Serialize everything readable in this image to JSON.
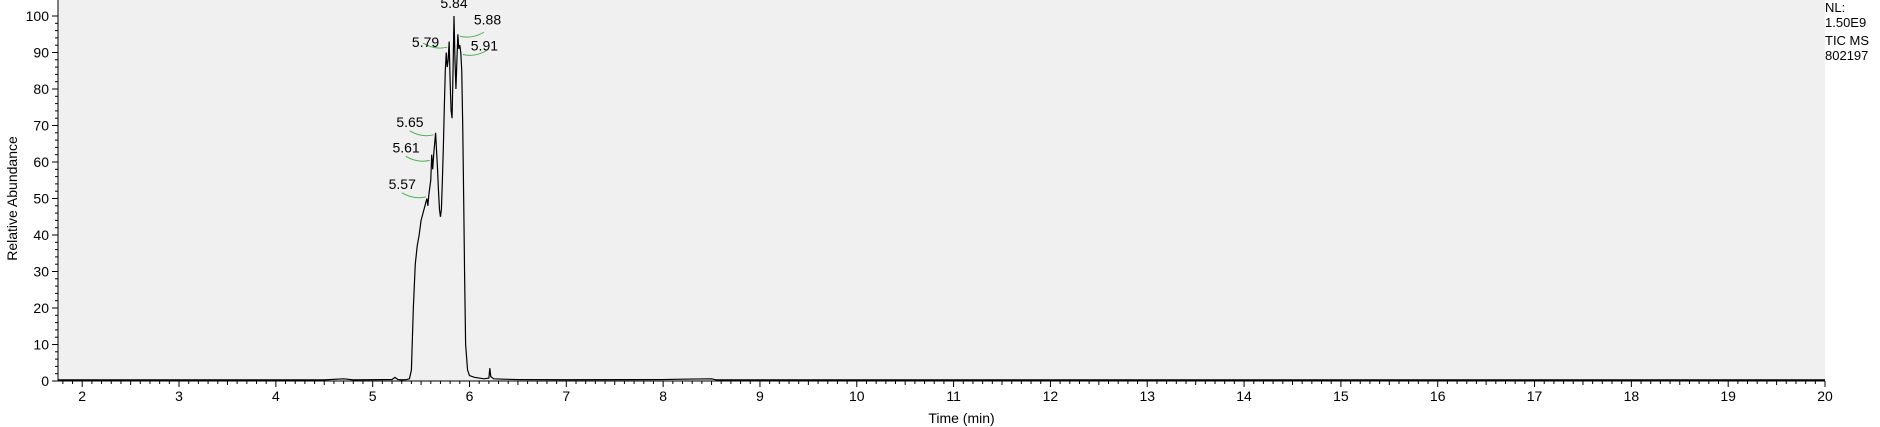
{
  "chart_data": {
    "type": "line",
    "title": "",
    "xlabel": "Time (min)",
    "ylabel": "Relative Abundance",
    "xlim": [
      1.75,
      20
    ],
    "ylim": [
      0,
      100
    ],
    "x_ticks": [
      2,
      3,
      4,
      5,
      6,
      7,
      8,
      9,
      10,
      11,
      12,
      13,
      14,
      15,
      16,
      17,
      18,
      19,
      20
    ],
    "y_ticks": [
      0,
      10,
      20,
      30,
      40,
      50,
      60,
      70,
      80,
      90,
      100
    ],
    "grid": false,
    "plot_background": "#f0f0f0",
    "line_color": "#000000",
    "peak_marker_color": "#4caf50",
    "info": [
      "NL:",
      "1.50E9",
      "TIC  MS",
      "802197"
    ],
    "peak_labels": [
      {
        "text": "5.84",
        "x": 5.84,
        "y": 100
      },
      {
        "text": "5.88",
        "x": 5.88,
        "y": 95
      },
      {
        "text": "5.79",
        "x": 5.79,
        "y": 92
      },
      {
        "text": "5.91",
        "x": 5.91,
        "y": 90
      },
      {
        "text": "5.65",
        "x": 5.65,
        "y": 68
      },
      {
        "text": "5.61",
        "x": 5.61,
        "y": 61
      },
      {
        "text": "5.57",
        "x": 5.57,
        "y": 51
      }
    ],
    "series": [
      {
        "values": [
          [
            1.75,
            0.3
          ],
          [
            4.5,
            0.3
          ],
          [
            4.7,
            0.6
          ],
          [
            4.8,
            0.3
          ],
          [
            5.2,
            0.4
          ],
          [
            5.23,
            1.0
          ],
          [
            5.26,
            0.4
          ],
          [
            5.3,
            0.3
          ],
          [
            5.35,
            0.4
          ],
          [
            5.38,
            0.6
          ],
          [
            5.4,
            3
          ],
          [
            5.42,
            20
          ],
          [
            5.44,
            32
          ],
          [
            5.46,
            37
          ],
          [
            5.48,
            40
          ],
          [
            5.5,
            44
          ],
          [
            5.52,
            46
          ],
          [
            5.54,
            48
          ],
          [
            5.56,
            50
          ],
          [
            5.57,
            48
          ],
          [
            5.58,
            51
          ],
          [
            5.6,
            55
          ],
          [
            5.61,
            62
          ],
          [
            5.62,
            58
          ],
          [
            5.63,
            62
          ],
          [
            5.65,
            68
          ],
          [
            5.66,
            63
          ],
          [
            5.67,
            58
          ],
          [
            5.68,
            52
          ],
          [
            5.69,
            47
          ],
          [
            5.7,
            45
          ],
          [
            5.71,
            47
          ],
          [
            5.72,
            55
          ],
          [
            5.73,
            64
          ],
          [
            5.74,
            75
          ],
          [
            5.75,
            85
          ],
          [
            5.76,
            90
          ],
          [
            5.77,
            86
          ],
          [
            5.78,
            88
          ],
          [
            5.79,
            93
          ],
          [
            5.8,
            82
          ],
          [
            5.81,
            74
          ],
          [
            5.82,
            72
          ],
          [
            5.83,
            85
          ],
          [
            5.84,
            100
          ],
          [
            5.85,
            88
          ],
          [
            5.86,
            80
          ],
          [
            5.87,
            88
          ],
          [
            5.88,
            95
          ],
          [
            5.89,
            91
          ],
          [
            5.9,
            92
          ],
          [
            5.91,
            90
          ],
          [
            5.92,
            85
          ],
          [
            5.93,
            70
          ],
          [
            5.94,
            50
          ],
          [
            5.95,
            28
          ],
          [
            5.96,
            10
          ],
          [
            5.98,
            3
          ],
          [
            6.0,
            1.5
          ],
          [
            6.05,
            1.0
          ],
          [
            6.1,
            0.8
          ],
          [
            6.15,
            0.6
          ],
          [
            6.2,
            0.8
          ],
          [
            6.21,
            3.5
          ],
          [
            6.22,
            1.2
          ],
          [
            6.25,
            0.6
          ],
          [
            6.35,
            0.5
          ],
          [
            6.5,
            0.4
          ],
          [
            7,
            0.35
          ],
          [
            8,
            0.4
          ],
          [
            8.2,
            0.5
          ],
          [
            8.5,
            0.6
          ],
          [
            8.55,
            0.3
          ],
          [
            10,
            0.3
          ],
          [
            15,
            0.3
          ],
          [
            20,
            0.3
          ]
        ]
      }
    ]
  }
}
